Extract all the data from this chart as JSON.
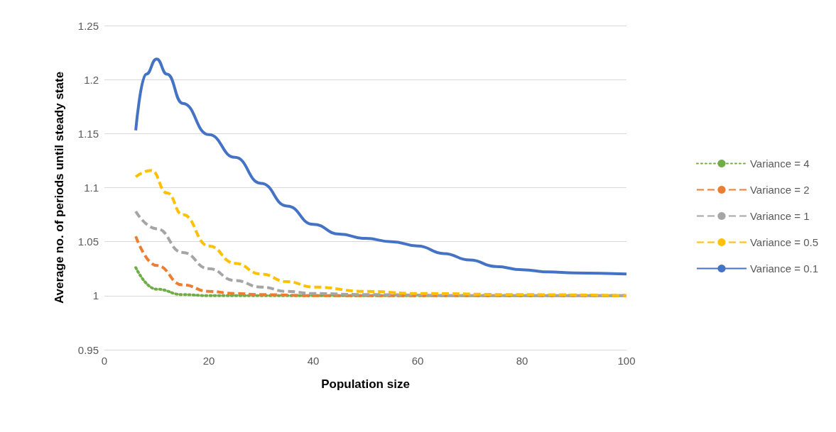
{
  "chart_data": {
    "type": "line",
    "xlabel": "Population size",
    "ylabel": "Average no. of periods until steady state",
    "xlim": [
      0,
      100
    ],
    "xticks": [
      0,
      20,
      40,
      60,
      80,
      100
    ],
    "ylim": [
      0.95,
      1.25
    ],
    "yticks": [
      0.95,
      1,
      1.05,
      1.1,
      1.15,
      1.2,
      1.25
    ],
    "grid": "y",
    "legend": "right",
    "marker": "none",
    "series": [
      {
        "name": "Variance = 4",
        "color": "#70ad47",
        "line_style": "dotted",
        "x": [
          6,
          10,
          15,
          20,
          30,
          40,
          60,
          80,
          100
        ],
        "values": [
          1.026,
          1.006,
          1.001,
          1.0,
          1.0,
          1.0,
          1.0,
          1.0,
          1.0
        ]
      },
      {
        "name": "Variance = 2",
        "color": "#ed7d31",
        "line_style": "dashed",
        "x": [
          6,
          10,
          15,
          20,
          25,
          30,
          40,
          60,
          80,
          100
        ],
        "values": [
          1.055,
          1.028,
          1.01,
          1.004,
          1.002,
          1.001,
          1.0,
          1.0,
          1.0,
          1.0
        ]
      },
      {
        "name": "Variance = 1",
        "color": "#a5a5a5",
        "line_style": "dashed",
        "x": [
          6,
          10,
          15,
          20,
          25,
          30,
          35,
          40,
          50,
          70,
          100
        ],
        "values": [
          1.078,
          1.062,
          1.04,
          1.025,
          1.014,
          1.008,
          1.004,
          1.002,
          1.001,
          1.0,
          1.0
        ]
      },
      {
        "name": "Variance = 0.5",
        "color": "#ffc000",
        "line_style": "dashed",
        "x": [
          6,
          9,
          12,
          15,
          20,
          25,
          30,
          35,
          40,
          50,
          60,
          80,
          100
        ],
        "values": [
          1.11,
          1.116,
          1.095,
          1.075,
          1.046,
          1.03,
          1.02,
          1.013,
          1.008,
          1.004,
          1.002,
          1.001,
          1.0
        ]
      },
      {
        "name": "Variance = 0.1",
        "color": "#4472c4",
        "line_style": "solid",
        "x": [
          6,
          8,
          10,
          12,
          15,
          20,
          25,
          30,
          35,
          40,
          45,
          50,
          55,
          60,
          65,
          70,
          75,
          80,
          85,
          90,
          100
        ],
        "values": [
          1.153,
          1.205,
          1.219,
          1.205,
          1.178,
          1.149,
          1.128,
          1.104,
          1.083,
          1.066,
          1.057,
          1.053,
          1.05,
          1.046,
          1.039,
          1.033,
          1.027,
          1.024,
          1.022,
          1.021,
          1.02
        ]
      }
    ]
  }
}
